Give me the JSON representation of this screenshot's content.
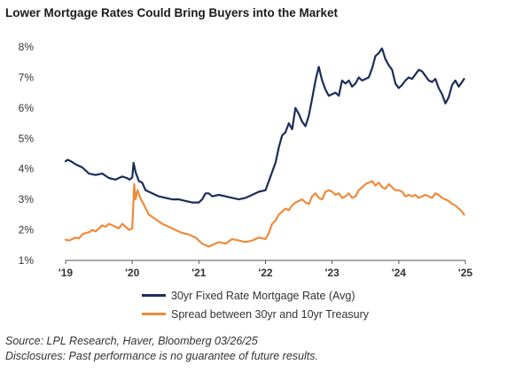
{
  "colors": {
    "mortgage": "#1c2d5a",
    "spread": "#f08a3a",
    "axis": "#555555",
    "text": "#333333"
  },
  "chart_data": {
    "type": "line",
    "title": "Lower Mortgage Rates Could Bring Buyers into the Market",
    "xlabel": "",
    "ylabel": "",
    "xlim": [
      2019.0,
      2025.0
    ],
    "ylim": [
      1,
      8.5
    ],
    "yticks": [
      1,
      2,
      3,
      4,
      5,
      6,
      7,
      8
    ],
    "ytick_labels": [
      "1%",
      "2%",
      "3%",
      "4%",
      "5%",
      "6%",
      "7%",
      "8%"
    ],
    "xticks": [
      2019,
      2020,
      2021,
      2022,
      2023,
      2024,
      2025
    ],
    "xtick_labels": [
      "'19",
      "'20",
      "'21",
      "'22",
      "'23",
      "'24",
      "'25"
    ],
    "grid": false,
    "legend_position": "bottom",
    "series": [
      {
        "name": "30yr Fixed Rate Mortgage Rate (Avg)",
        "color": "#1c2d5a",
        "x": [
          2019.0,
          2019.03,
          2019.08,
          2019.15,
          2019.25,
          2019.35,
          2019.45,
          2019.55,
          2019.65,
          2019.75,
          2019.85,
          2019.92,
          2019.96,
          2020.0,
          2020.02,
          2020.05,
          2020.1,
          2020.15,
          2020.2,
          2020.3,
          2020.4,
          2020.5,
          2020.6,
          2020.7,
          2020.8,
          2020.9,
          2021.0,
          2021.05,
          2021.1,
          2021.15,
          2021.2,
          2021.3,
          2021.4,
          2021.5,
          2021.6,
          2021.7,
          2021.8,
          2021.9,
          2022.0,
          2022.05,
          2022.1,
          2022.15,
          2022.2,
          2022.25,
          2022.3,
          2022.35,
          2022.4,
          2022.45,
          2022.5,
          2022.55,
          2022.6,
          2022.65,
          2022.7,
          2022.75,
          2022.8,
          2022.85,
          2022.9,
          2022.95,
          2023.0,
          2023.05,
          2023.1,
          2023.15,
          2023.2,
          2023.25,
          2023.3,
          2023.35,
          2023.4,
          2023.45,
          2023.5,
          2023.55,
          2023.6,
          2023.65,
          2023.7,
          2023.75,
          2023.8,
          2023.85,
          2023.9,
          2023.95,
          2024.0,
          2024.05,
          2024.1,
          2024.15,
          2024.2,
          2024.25,
          2024.3,
          2024.35,
          2024.4,
          2024.45,
          2024.5,
          2024.55,
          2024.6,
          2024.65,
          2024.7,
          2024.75,
          2024.8,
          2024.85,
          2024.9,
          2024.95,
          2024.98
        ],
        "values": [
          4.25,
          4.3,
          4.25,
          4.15,
          4.05,
          3.85,
          3.8,
          3.85,
          3.7,
          3.65,
          3.75,
          3.7,
          3.65,
          3.72,
          4.2,
          3.9,
          3.6,
          3.55,
          3.3,
          3.2,
          3.1,
          3.05,
          3.0,
          3.0,
          2.95,
          2.9,
          2.9,
          3.0,
          3.2,
          3.2,
          3.1,
          3.15,
          3.1,
          3.05,
          3.0,
          3.05,
          3.15,
          3.25,
          3.3,
          3.6,
          3.9,
          4.2,
          4.7,
          5.1,
          5.2,
          5.5,
          5.3,
          6.0,
          5.8,
          5.55,
          5.4,
          5.75,
          6.3,
          6.9,
          7.35,
          6.9,
          6.6,
          6.4,
          6.45,
          6.5,
          6.4,
          6.9,
          6.8,
          6.9,
          6.7,
          6.8,
          7.0,
          6.9,
          6.95,
          7.0,
          7.3,
          7.7,
          7.8,
          7.95,
          7.6,
          7.4,
          7.25,
          6.8,
          6.65,
          6.75,
          6.9,
          7.0,
          6.95,
          7.1,
          7.25,
          7.2,
          7.05,
          6.9,
          6.85,
          6.95,
          6.65,
          6.45,
          6.15,
          6.35,
          6.75,
          6.9,
          6.7,
          6.85,
          6.95
        ]
      },
      {
        "name": "Spread between 30yr and 10yr Treasury",
        "color": "#f08a3a",
        "x": [
          2019.0,
          2019.05,
          2019.1,
          2019.15,
          2019.2,
          2019.25,
          2019.3,
          2019.35,
          2019.4,
          2019.45,
          2019.5,
          2019.55,
          2019.6,
          2019.65,
          2019.7,
          2019.75,
          2019.8,
          2019.85,
          2019.9,
          2019.95,
          2020.0,
          2020.03,
          2020.05,
          2020.08,
          2020.12,
          2020.18,
          2020.25,
          2020.35,
          2020.45,
          2020.55,
          2020.65,
          2020.75,
          2020.85,
          2020.95,
          2021.0,
          2021.05,
          2021.1,
          2021.15,
          2021.2,
          2021.3,
          2021.4,
          2021.5,
          2021.6,
          2021.7,
          2021.8,
          2021.9,
          2022.0,
          2022.05,
          2022.1,
          2022.15,
          2022.2,
          2022.25,
          2022.3,
          2022.35,
          2022.4,
          2022.45,
          2022.5,
          2022.55,
          2022.6,
          2022.65,
          2022.7,
          2022.75,
          2022.8,
          2022.85,
          2022.9,
          2022.95,
          2023.0,
          2023.05,
          2023.1,
          2023.15,
          2023.2,
          2023.25,
          2023.3,
          2023.35,
          2023.4,
          2023.45,
          2023.5,
          2023.55,
          2023.6,
          2023.65,
          2023.7,
          2023.75,
          2023.8,
          2023.85,
          2023.9,
          2023.95,
          2024.0,
          2024.05,
          2024.1,
          2024.15,
          2024.2,
          2024.25,
          2024.3,
          2024.35,
          2024.4,
          2024.45,
          2024.5,
          2024.55,
          2024.6,
          2024.65,
          2024.7,
          2024.75,
          2024.8,
          2024.85,
          2024.9,
          2024.95,
          2024.98
        ],
        "values": [
          1.68,
          1.65,
          1.7,
          1.75,
          1.72,
          1.85,
          1.9,
          1.92,
          2.0,
          1.95,
          2.05,
          2.15,
          2.1,
          2.2,
          2.15,
          2.1,
          2.05,
          2.2,
          2.1,
          2.0,
          2.05,
          3.5,
          3.0,
          3.3,
          3.05,
          2.8,
          2.5,
          2.35,
          2.2,
          2.1,
          2.0,
          1.9,
          1.85,
          1.75,
          1.65,
          1.55,
          1.5,
          1.45,
          1.5,
          1.6,
          1.55,
          1.7,
          1.65,
          1.6,
          1.65,
          1.75,
          1.7,
          1.9,
          2.2,
          2.3,
          2.5,
          2.6,
          2.7,
          2.65,
          2.8,
          2.9,
          2.95,
          3.0,
          2.9,
          2.85,
          3.1,
          3.2,
          3.05,
          3.0,
          3.25,
          3.3,
          3.25,
          3.15,
          3.2,
          3.05,
          3.1,
          3.2,
          3.05,
          3.1,
          3.3,
          3.4,
          3.5,
          3.55,
          3.6,
          3.45,
          3.55,
          3.4,
          3.35,
          3.5,
          3.4,
          3.3,
          3.3,
          3.25,
          3.1,
          3.15,
          3.1,
          3.15,
          3.05,
          3.1,
          3.15,
          3.1,
          3.05,
          3.2,
          3.15,
          3.05,
          3.0,
          2.95,
          2.85,
          2.8,
          2.7,
          2.6,
          2.5
        ]
      }
    ]
  },
  "footer": {
    "source": "Source: LPL Research, Haver, Bloomberg 03/26/25",
    "disclosure": "Disclosures: Past performance is no guarantee of future results."
  }
}
